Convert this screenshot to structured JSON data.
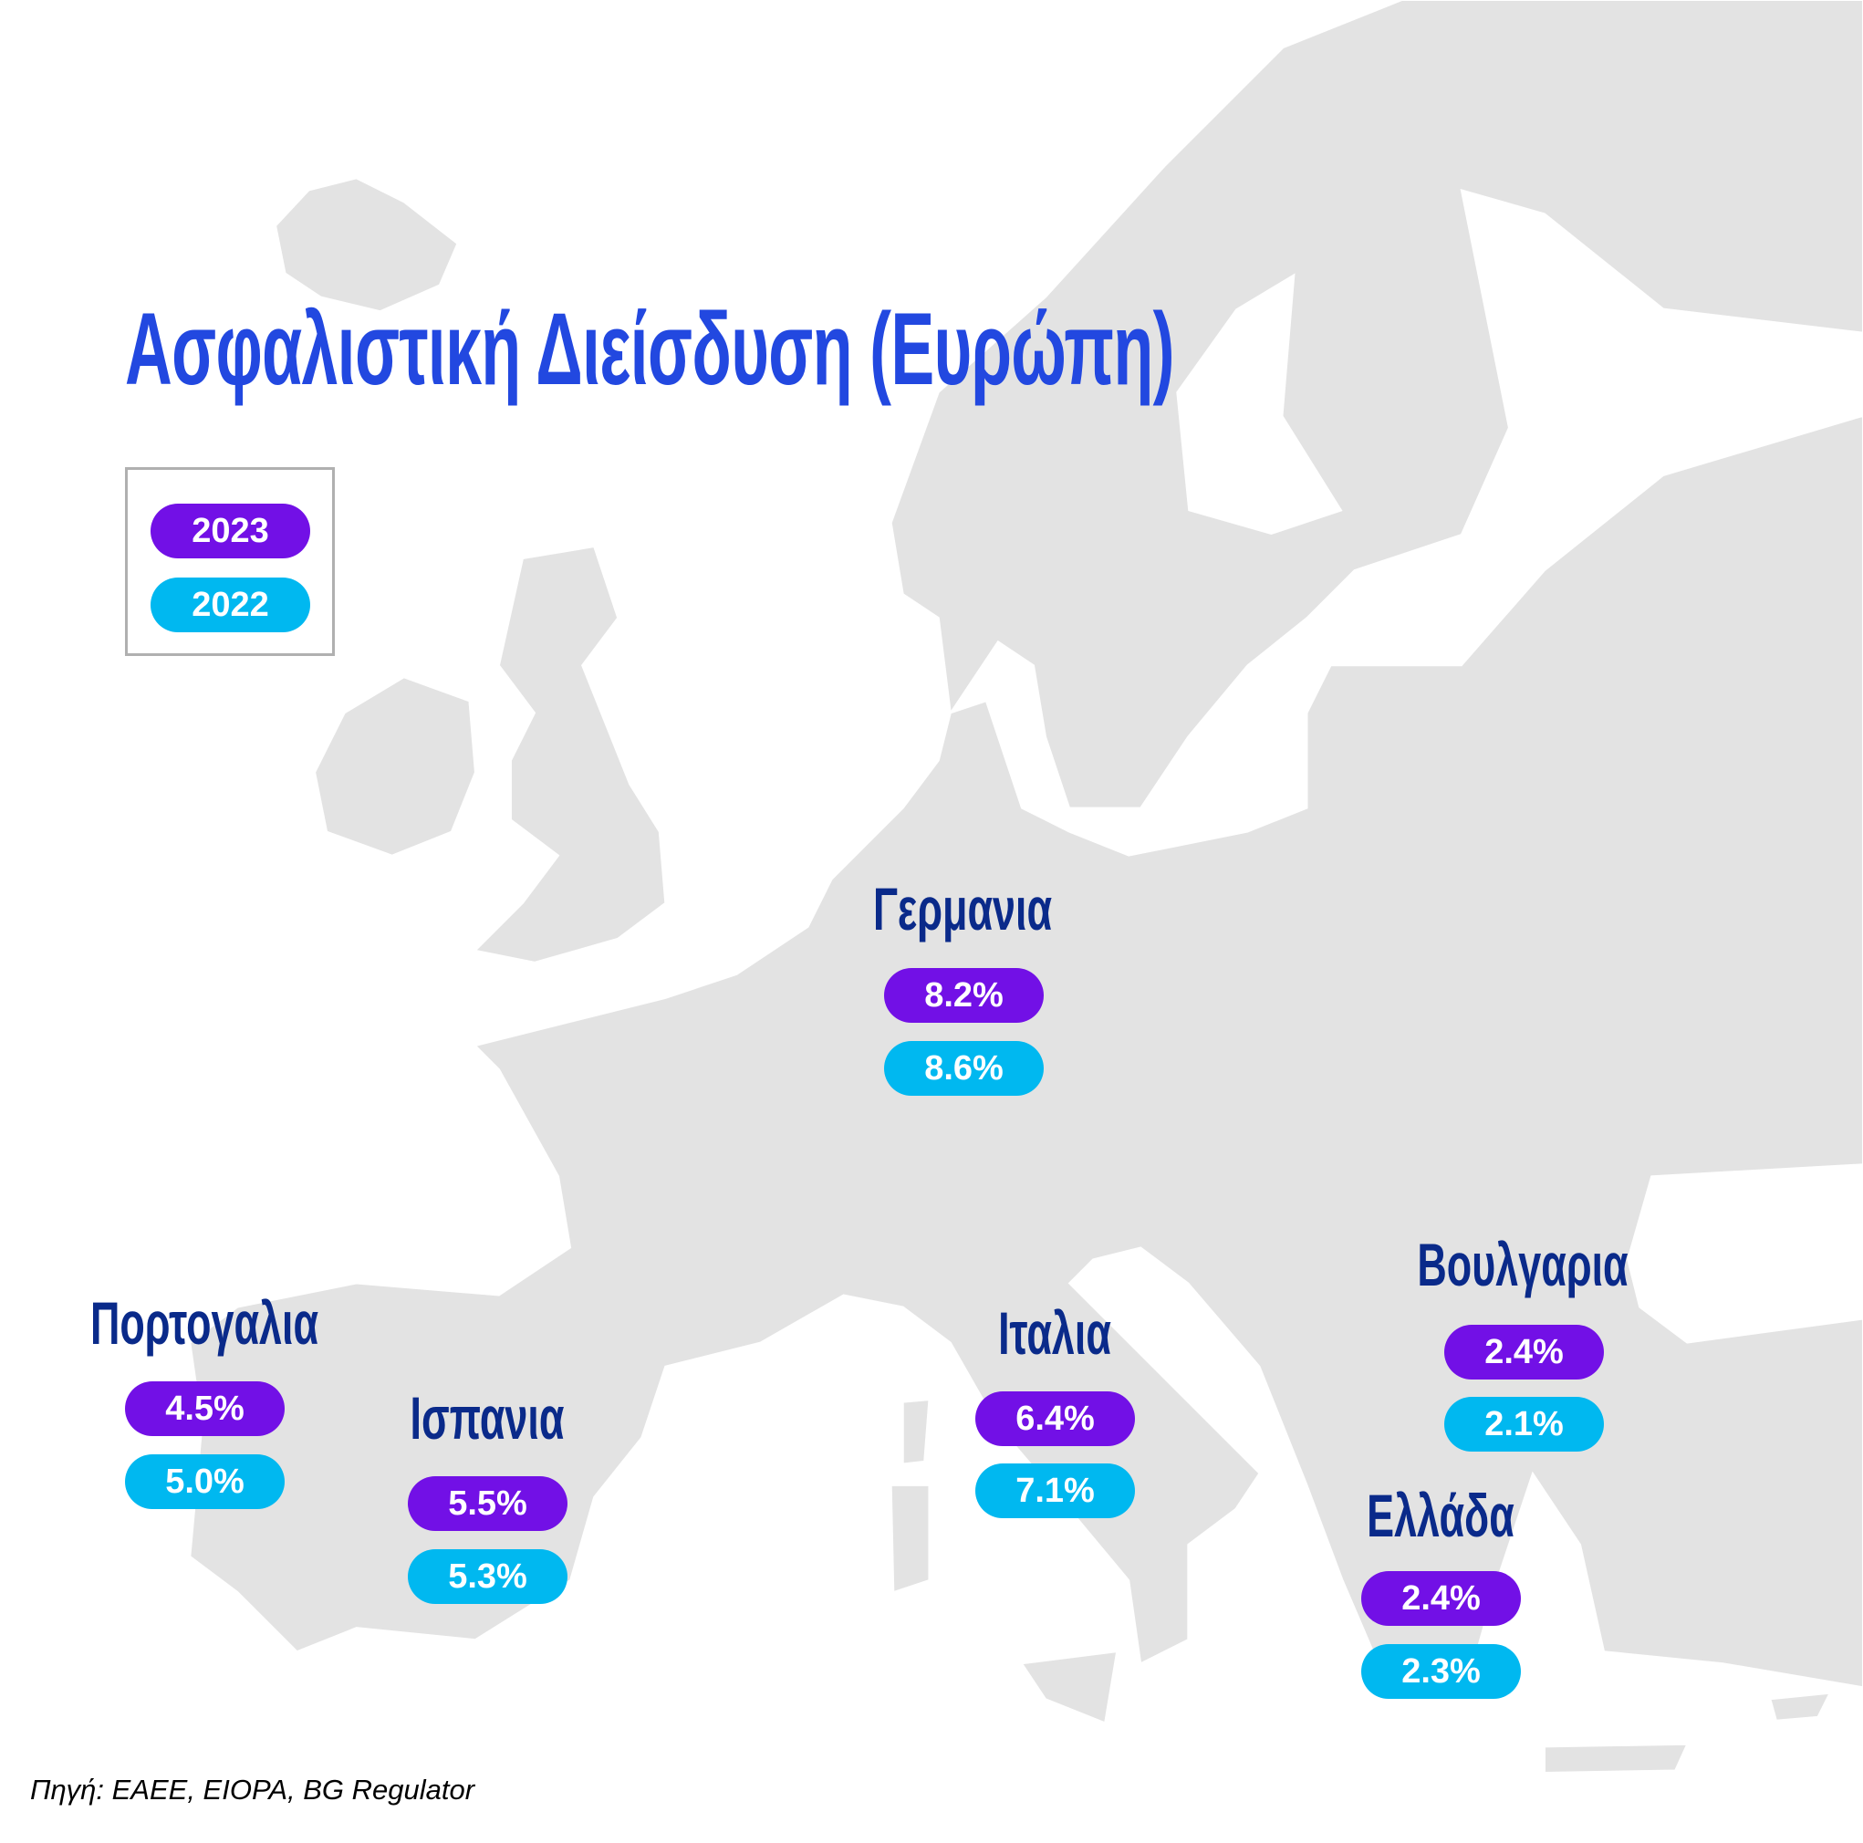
{
  "title": "Ασφαλιστική Διείσδυση (Ευρώπη)",
  "legend": {
    "y2023": "2023",
    "y2022": "2022"
  },
  "colors": {
    "title": "#2248e0",
    "country_label": "#0a2a8a",
    "year_2023": "#7210e6",
    "year_2022": "#00b8f0",
    "land": "#e3e3e3"
  },
  "countries": {
    "germany": {
      "name": "Γερμανια",
      "v2023": "8.2%",
      "v2022": "8.6%"
    },
    "portugal": {
      "name": "Πορτογαλια",
      "v2023": "4.5%",
      "v2022": "5.0%"
    },
    "spain": {
      "name": "Ισπανια",
      "v2023": "5.5%",
      "v2022": "5.3%"
    },
    "italy": {
      "name": "Ιταλια",
      "v2023": "6.4%",
      "v2022": "7.1%"
    },
    "bulgaria": {
      "name": "Βουλγαρια",
      "v2023": "2.4%",
      "v2022": "2.1%"
    },
    "greece": {
      "name": "Ελλάδα",
      "v2023": "2.4%",
      "v2022": "2.3%"
    }
  },
  "source": "Πηγή: ΕΑΕΕ, EIOPA, BG Regulator"
}
